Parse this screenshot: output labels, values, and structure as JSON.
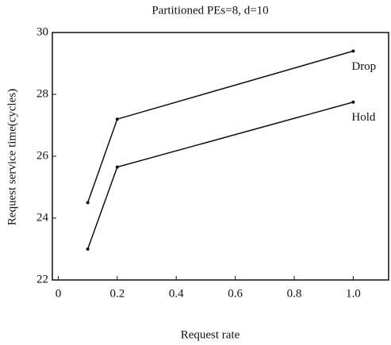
{
  "chart_data": {
    "type": "line",
    "title": "Partitioned PEs=8, d=10",
    "x_label": "Request rate",
    "y_label": "Request service time(cycles)",
    "x": [
      0.1,
      0.2,
      1.0
    ],
    "series": [
      {
        "name": "Drop",
        "color": "#111111",
        "values": [
          24.5,
          27.2,
          29.4
        ]
      },
      {
        "name": "Hold",
        "color": "#111111",
        "values": [
          23.0,
          25.65,
          27.75
        ]
      }
    ],
    "xlim": [
      -0.02,
      1.12
    ],
    "ylim": [
      22,
      30
    ],
    "xticks": [
      0,
      0.2,
      0.4,
      0.6,
      0.8,
      {
        "value": 1,
        "label": "1.0"
      }
    ],
    "yticks": [
      22,
      24,
      26,
      28,
      30
    ]
  }
}
